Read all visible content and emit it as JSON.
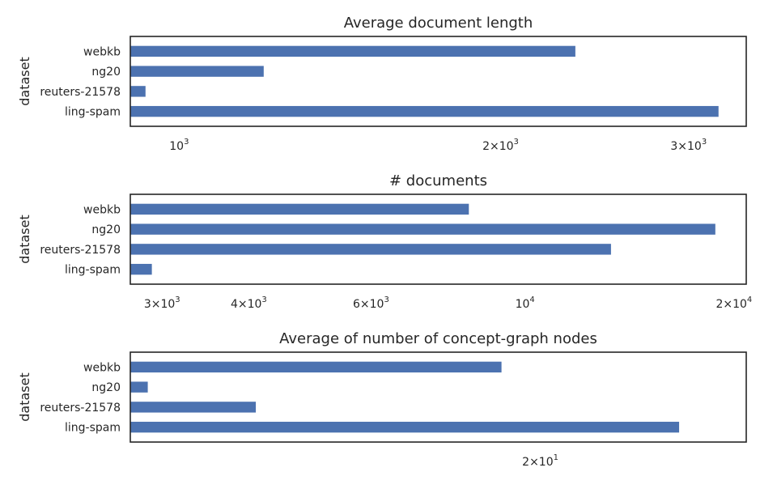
{
  "chart_data": [
    {
      "type": "bar",
      "orientation": "horizontal",
      "title": "Average document length",
      "ylabel": "dataset",
      "xlabel": "",
      "xscale": "log",
      "xlim": [
        900,
        3200
      ],
      "categories": [
        "webkb",
        "ng20",
        "reuters-21578",
        "ling-spam"
      ],
      "values": [
        2350,
        1200,
        930,
        3200
      ],
      "xticks": [
        {
          "value": 1000,
          "base": "10",
          "exp": "3"
        },
        {
          "value": 2000,
          "base": "2×10",
          "exp": "3"
        },
        {
          "value": 3000,
          "base": "3×10",
          "exp": "3"
        }
      ],
      "bar_color": "#4c72b0",
      "grid": false
    },
    {
      "type": "bar",
      "orientation": "horizontal",
      "title": "# documents",
      "ylabel": "dataset",
      "xlabel": "",
      "xscale": "log",
      "xlim": [
        2700,
        19000
      ],
      "categories": [
        "webkb",
        "ng20",
        "reuters-21578",
        "ling-spam"
      ],
      "values": [
        8300,
        18800,
        13300,
        2900
      ],
      "xticks": [
        {
          "value": 3000,
          "base": "3×10",
          "exp": "3"
        },
        {
          "value": 4000,
          "base": "4×10",
          "exp": "3"
        },
        {
          "value": 6000,
          "base": "6×10",
          "exp": "3"
        },
        {
          "value": 10000,
          "base": "10",
          "exp": "4"
        },
        {
          "value": 20000,
          "base": "2×10",
          "exp": "4"
        }
      ],
      "bar_color": "#4c72b0",
      "grid": false
    },
    {
      "type": "bar",
      "orientation": "horizontal",
      "title": "Average of number of concept-graph nodes",
      "ylabel": "dataset",
      "xlabel": "",
      "xscale": "log",
      "xlim": [
        14.5,
        23
      ],
      "categories": [
        "webkb",
        "ng20",
        "reuters-21578",
        "ling-spam"
      ],
      "values": [
        19.4,
        14.7,
        16.0,
        22.3
      ],
      "xticks": [
        {
          "value": 20,
          "base": "2×10",
          "exp": "1"
        }
      ],
      "bar_color": "#4c72b0",
      "grid": false
    }
  ]
}
